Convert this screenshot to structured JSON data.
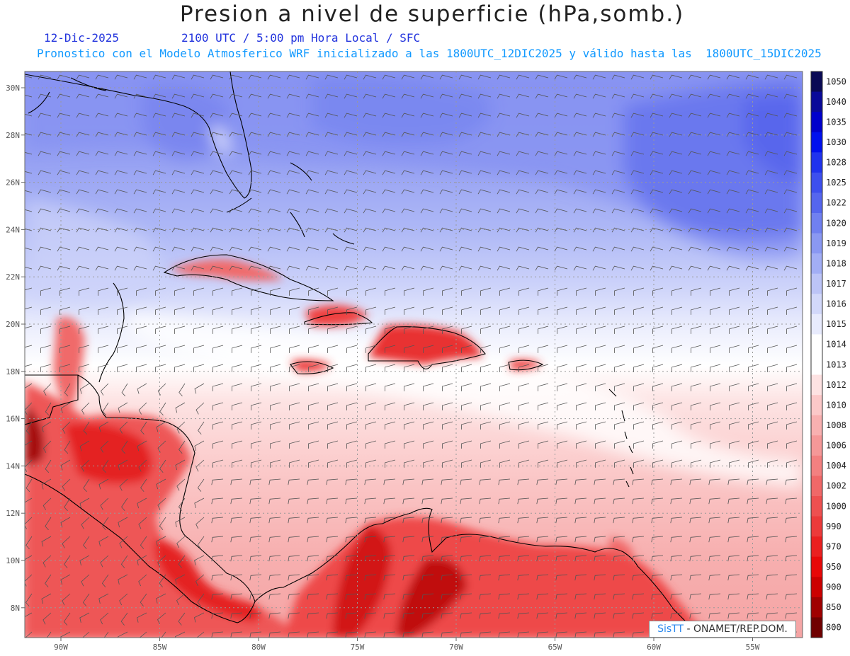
{
  "header": {
    "title": "Presion a nivel de superficie (hPa,somb.)",
    "date": "12-Dic-2025",
    "time_info": "2100 UTC / 5:00 pm Hora Local / SFC",
    "model_info": "Pronostico con el Modelo Atmosferico WRF inicializado a las 1800UTC_12DIC2025 y válido hasta las  1800UTC_15DIC2025"
  },
  "map": {
    "lon_labels": [
      "90W",
      "85W",
      "80W",
      "75W",
      "70W",
      "65W",
      "60W",
      "55W"
    ],
    "lat_labels": [
      "30N",
      "28N",
      "26N",
      "24N",
      "22N",
      "20N",
      "18N",
      "16N",
      "14N",
      "12N",
      "10N",
      "8N"
    ],
    "grid": true
  },
  "legend": {
    "levels": [
      "1050",
      "1040",
      "1035",
      "1030",
      "1028",
      "1025",
      "1022",
      "1020",
      "1019",
      "1018",
      "1017",
      "1016",
      "1015",
      "1014",
      "1013",
      "1012",
      "1010",
      "1008",
      "1006",
      "1004",
      "1002",
      "1000",
      "990",
      "970",
      "950",
      "900",
      "850",
      "800"
    ],
    "colors": [
      "#0a0a55",
      "#0a0a99",
      "#0000cc",
      "#0010ee",
      "#2033ee",
      "#3d4fee",
      "#5566ee",
      "#7080f0",
      "#8a98f2",
      "#a2aef5",
      "#bcc4f7",
      "#d2d8fa",
      "#e8ebfd",
      "#ffffff",
      "#ffffff",
      "#fde2e2",
      "#fbc8c8",
      "#f8b0b0",
      "#f59898",
      "#f38080",
      "#f06868",
      "#ee5050",
      "#ec3a3a",
      "#ea2020",
      "#e80808",
      "#cc0000",
      "#a00000",
      "#700000"
    ]
  },
  "credit": {
    "sis": "SisTT",
    "text": " - ONAMET/REP.DOM."
  }
}
